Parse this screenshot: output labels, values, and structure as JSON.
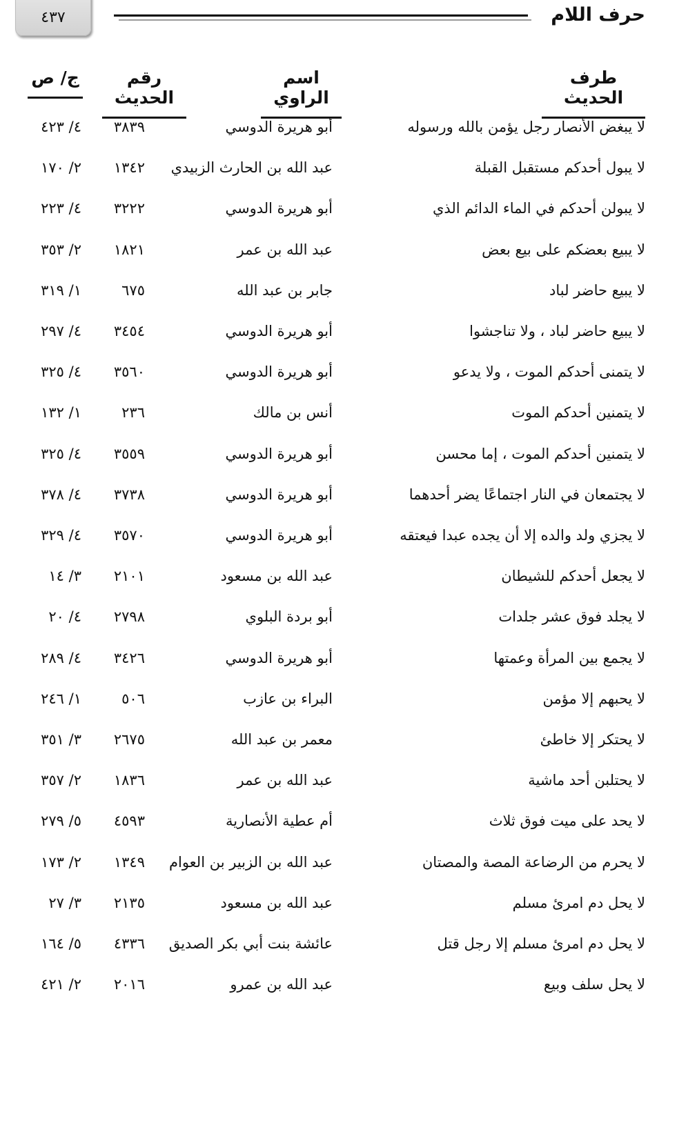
{
  "header": {
    "page_number": "٤٣٧",
    "chapter_title": "حرف اللام"
  },
  "columns": [
    "طرف الحديث",
    "اسم الراوي",
    "رقم الحديث",
    "ج/ ص"
  ],
  "rows": [
    {
      "hadith": "لا يبغض الأنصار رجل يؤمن بالله ورسوله",
      "narrator": "أبو هريرة الدوسي",
      "number": "٣٨٣٩",
      "ref": "٤/ ٤٢٣"
    },
    {
      "hadith": "لا يبول أحدكم مستقبل القبلة",
      "narrator": "عبد الله بن الحارث الزبيدي",
      "number": "١٣٤٢",
      "ref": "٢/ ١٧٠"
    },
    {
      "hadith": "لا يبولن أحدكم في الماء الدائم الذي",
      "narrator": "أبو هريرة الدوسي",
      "number": "٣٢٢٢",
      "ref": "٤/ ٢٢٣"
    },
    {
      "hadith": "لا يبيع بعضكم على بيع بعض",
      "narrator": "عبد الله بن عمر",
      "number": "١٨٢١",
      "ref": "٢/ ٣٥٣"
    },
    {
      "hadith": "لا يبيع حاضر لباد",
      "narrator": "جابر بن عبد الله",
      "number": "٦٧٥",
      "ref": "١/ ٣١٩"
    },
    {
      "hadith": "لا يبيع حاضر لباد ، ولا تناجشوا",
      "narrator": "أبو هريرة الدوسي",
      "number": "٣٤٥٤",
      "ref": "٤/ ٢٩٧"
    },
    {
      "hadith": "لا يتمنى أحدكم الموت ، ولا يدعو",
      "narrator": "أبو هريرة الدوسي",
      "number": "٣٥٦٠",
      "ref": "٤/ ٣٢٥"
    },
    {
      "hadith": "لا يتمنين أحدكم الموت",
      "narrator": "أنس بن مالك",
      "number": "٢٣٦",
      "ref": "١/ ١٣٢"
    },
    {
      "hadith": "لا يتمنين أحدكم الموت ، إما محسن",
      "narrator": "أبو هريرة الدوسي",
      "number": "٣٥٥٩",
      "ref": "٤/ ٣٢٥"
    },
    {
      "hadith": "لا يجتمعان في النار اجتماعًا يضر أحدهما",
      "narrator": "أبو هريرة الدوسي",
      "number": "٣٧٣٨",
      "ref": "٤/ ٣٧٨"
    },
    {
      "hadith": "لا يجزي ولد والده إلا أن يجده عبدا فيعتقه",
      "narrator": "أبو هريرة الدوسي",
      "number": "٣٥٧٠",
      "ref": "٤/ ٣٢٩"
    },
    {
      "hadith": "لا يجعل أحدكم للشيطان",
      "narrator": "عبد الله بن مسعود",
      "number": "٢١٠١",
      "ref": "٣/ ١٤"
    },
    {
      "hadith": "لا يجلد فوق عشر جلدات",
      "narrator": "أبو بردة البلوي",
      "number": "٢٧٩٨",
      "ref": "٤/ ٢٠"
    },
    {
      "hadith": "لا يجمع بين المرأة وعمتها",
      "narrator": "أبو هريرة الدوسي",
      "number": "٣٤٢٦",
      "ref": "٤/ ٢٨٩"
    },
    {
      "hadith": "لا يحبهم إلا مؤمن",
      "narrator": "البراء بن عازب",
      "number": "٥٠٦",
      "ref": "١/ ٢٤٦"
    },
    {
      "hadith": "لا يحتكر إلا خاطئ",
      "narrator": "معمر بن عبد الله",
      "number": "٢٦٧٥",
      "ref": "٣/ ٣٥١"
    },
    {
      "hadith": "لا يحتلبن أحد ماشية",
      "narrator": "عبد الله بن عمر",
      "number": "١٨٣٦",
      "ref": "٢/ ٣٥٧"
    },
    {
      "hadith": "لا يحد على ميت فوق ثلاث",
      "narrator": "أم عطية الأنصارية",
      "number": "٤٥٩٣",
      "ref": "٥/ ٢٧٩"
    },
    {
      "hadith": "لا يحرم من الرضاعة المصة والمصتان",
      "narrator": "عبد الله بن الزبير بن العوام",
      "number": "١٣٤٩",
      "ref": "٢/ ١٧٣"
    },
    {
      "hadith": "لا يحل دم امرئ مسلم",
      "narrator": "عبد الله بن مسعود",
      "number": "٢١٣٥",
      "ref": "٣/ ٢٧"
    },
    {
      "hadith": "لا يحل دم امرئ مسلم إلا رجل قتل",
      "narrator": "عائشة بنت أبي بكر الصديق",
      "number": "٤٣٣٦",
      "ref": "٥/ ١٦٤"
    },
    {
      "hadith": "لا يحل سلف وبيع",
      "narrator": "عبد الله بن عمرو",
      "number": "٢٠١٦",
      "ref": "٢/ ٤٢١"
    }
  ]
}
